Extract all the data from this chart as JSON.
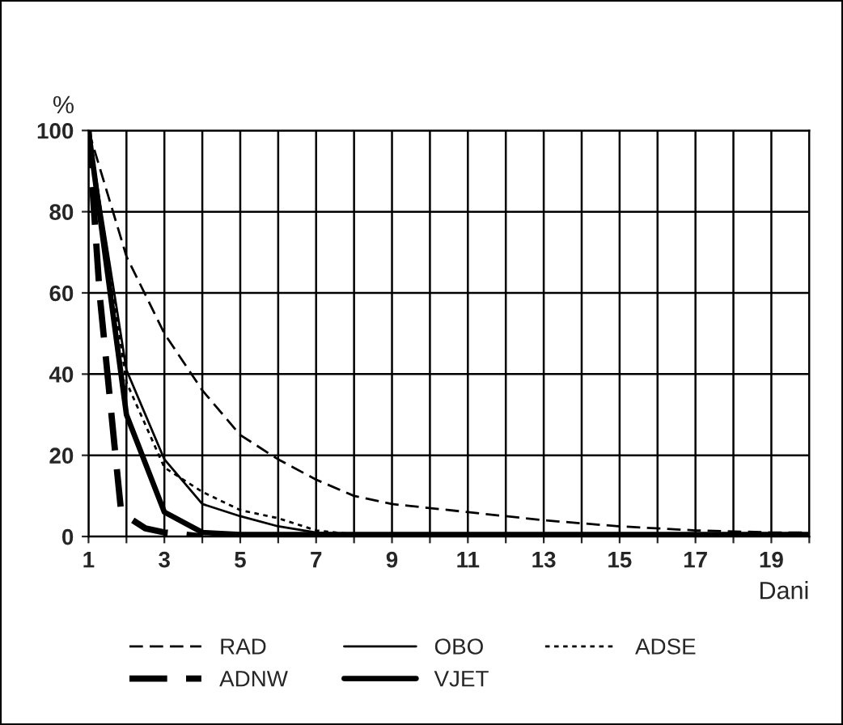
{
  "chart_data": {
    "type": "line",
    "xlabel": "Dani",
    "ylabel": "%",
    "xlim": [
      1,
      20
    ],
    "xticks": [
      1,
      {
        "value": 2,
        "label": null
      },
      3,
      {
        "value": 4,
        "label": null
      },
      5,
      {
        "value": 6,
        "label": null
      },
      7,
      {
        "value": 8,
        "label": null
      },
      9,
      {
        "value": 10,
        "label": null
      },
      11,
      {
        "value": 12,
        "label": null
      },
      13,
      {
        "value": 14,
        "label": null
      },
      15,
      {
        "value": 16,
        "label": null
      },
      17,
      {
        "value": 18,
        "label": null
      },
      19,
      {
        "value": 20,
        "label": null
      }
    ],
    "ylim": [
      0,
      100
    ],
    "yticks": [
      0,
      20,
      40,
      60,
      80,
      100
    ],
    "grid": true,
    "legend": "bottom",
    "marker": "none",
    "series": [
      {
        "name": "RAD",
        "color": "#000000",
        "line_style": "dashed",
        "x": [
          1,
          2,
          3,
          4,
          5,
          6,
          7,
          8,
          9,
          11,
          13,
          15,
          17,
          19,
          20
        ],
        "values": [
          100,
          69,
          50,
          36,
          25,
          19,
          14,
          10,
          8,
          6,
          4,
          2.5,
          1.5,
          1,
          1
        ]
      },
      {
        "name": "OBO",
        "color": "#000000",
        "line_style": "solid",
        "x": [
          1,
          2,
          3,
          4,
          5,
          6,
          7,
          8,
          9,
          20
        ],
        "values": [
          100,
          41,
          19,
          8,
          5,
          2.5,
          1,
          0.5,
          0,
          0
        ]
      },
      {
        "name": "ADSE",
        "color": "#000000",
        "line_style": "dotted",
        "x": [
          1,
          2,
          3,
          4,
          5,
          6,
          7,
          8,
          9,
          20
        ],
        "values": [
          100,
          38,
          17,
          11,
          6.5,
          4.5,
          1.5,
          0.5,
          0,
          0
        ]
      },
      {
        "name": "ADNW",
        "color": "#000000",
        "line_style": "dashed",
        "x": [
          1,
          1.3,
          1.5,
          1.7,
          1.85,
          2,
          2.5,
          3,
          4
        ],
        "values": [
          100,
          59,
          40,
          21,
          7,
          5,
          2,
          1,
          0
        ]
      },
      {
        "name": "VJET",
        "color": "#000000",
        "line_style": "solid",
        "x": [
          1,
          2,
          3,
          4,
          5,
          20
        ],
        "values": [
          100,
          30,
          6,
          1,
          0.5,
          0.5
        ]
      }
    ]
  }
}
